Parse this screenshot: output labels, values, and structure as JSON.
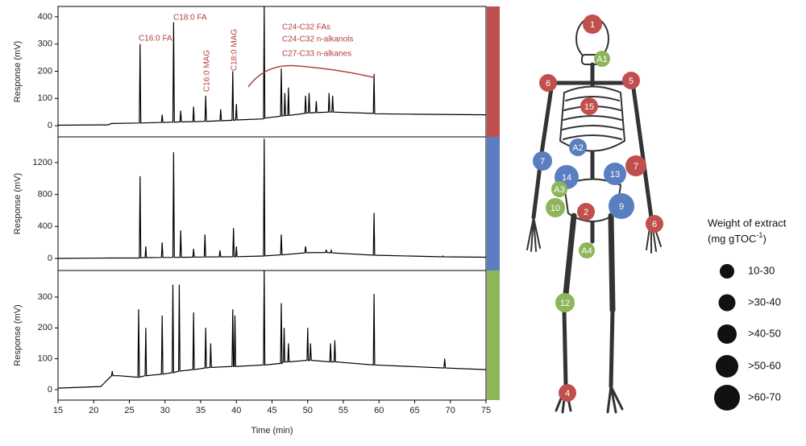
{
  "chart_data": [
    {
      "type": "line",
      "ylabel": "Response (mV)",
      "band_color": "#c0504d",
      "xlim": [
        15,
        75
      ],
      "ylim": [
        -41,
        438
      ],
      "yticks": [
        0,
        100,
        200,
        300,
        400
      ],
      "annotations": [
        "C16:0 FA",
        "C18:0 FA",
        "C16:0 MAG",
        "C18:0 MAG",
        "C24-C32 FAs",
        "C24-C32 n-alkanols",
        "C27-C33 n-alkanes"
      ],
      "x": [
        15,
        22,
        22.5,
        26.4,
        26.5,
        26.6,
        29.5,
        29.6,
        29.7,
        31.1,
        31.2,
        31.3,
        32.1,
        32.2,
        32.3,
        33.9,
        34,
        34.1,
        35.6,
        35.7,
        35.8,
        37.7,
        37.8,
        37.9,
        39.4,
        39.5,
        39.6,
        39.9,
        40,
        40.1,
        43.8,
        43.9,
        44,
        46.2,
        46.3,
        46.4,
        46.7,
        46.8,
        46.9,
        47.2,
        47.3,
        47.4,
        49.6,
        49.7,
        49.8,
        50.1,
        50.2,
        50.3,
        51.1,
        51.2,
        51.3,
        52.9,
        53,
        53.1,
        53.4,
        53.5,
        53.6,
        59.2,
        59.3,
        59.4,
        65,
        75
      ],
      "series": [
        {
          "color": "#000000",
          "values": [
            2,
            3,
            8,
            10,
            300,
            10,
            12,
            40,
            12,
            13,
            380,
            13,
            14,
            55,
            14,
            15,
            70,
            15,
            16,
            110,
            16,
            18,
            60,
            18,
            20,
            200,
            20,
            21,
            80,
            21,
            25,
            440,
            28,
            35,
            210,
            36,
            37,
            120,
            37,
            38,
            140,
            38,
            45,
            110,
            46,
            47,
            120,
            47,
            48,
            90,
            48,
            50,
            120,
            50,
            50,
            110,
            50,
            45,
            190,
            44,
            42,
            40
          ]
        }
      ]
    },
    {
      "type": "line",
      "ylabel": "Response (mV)",
      "band_color": "#5a7ebf",
      "xlim": [
        15,
        75
      ],
      "ylim": [
        -151,
        1522
      ],
      "yticks": [
        0,
        400,
        800,
        1200
      ],
      "x": [
        15,
        22,
        26.4,
        26.5,
        26.6,
        27.2,
        27.3,
        27.4,
        29.5,
        29.6,
        29.7,
        31.1,
        31.2,
        31.3,
        32.1,
        32.2,
        32.3,
        33.9,
        34,
        34.1,
        35.5,
        35.6,
        35.7,
        37.6,
        37.7,
        37.8,
        39.5,
        39.6,
        39.7,
        39.9,
        40,
        40.1,
        43.8,
        43.9,
        44,
        46.2,
        46.3,
        46.4,
        49.6,
        49.7,
        49.8,
        52.5,
        52.6,
        52.7,
        53.2,
        53.3,
        53.4,
        59.2,
        59.3,
        59.4,
        68.9,
        69,
        69.1,
        75
      ],
      "series": [
        {
          "color": "#000000",
          "values": [
            0,
            5,
            5,
            1030,
            8,
            10,
            150,
            10,
            12,
            200,
            12,
            13,
            1330,
            13,
            14,
            350,
            14,
            16,
            120,
            16,
            18,
            300,
            18,
            20,
            100,
            20,
            21,
            380,
            21,
            22,
            150,
            22,
            30,
            1500,
            32,
            45,
            300,
            45,
            70,
            150,
            72,
            75,
            110,
            75,
            70,
            100,
            70,
            40,
            570,
            40,
            20,
            30,
            20,
            15
          ]
        }
      ]
    },
    {
      "type": "line",
      "ylabel": "Response (mV)",
      "band_color": "#8db55a",
      "xlim": [
        15,
        75
      ],
      "ylim": [
        -34,
        386
      ],
      "yticks": [
        0,
        100,
        200,
        300
      ],
      "xticks": [
        15,
        20,
        25,
        30,
        35,
        40,
        45,
        50,
        55,
        60,
        65,
        70,
        75
      ],
      "xlabel": "Time (min)",
      "x": [
        15,
        21,
        22.5,
        22.6,
        22.7,
        23.3,
        23.4,
        23.5,
        26.2,
        26.3,
        26.4,
        27.2,
        27.3,
        27.4,
        29.5,
        29.6,
        29.7,
        31,
        31.1,
        31.2,
        31.9,
        32,
        32.1,
        33.9,
        34,
        34.1,
        35.6,
        35.7,
        35.8,
        36.3,
        36.4,
        36.5,
        39.4,
        39.5,
        39.6,
        39.7,
        39.8,
        39.9,
        43.8,
        43.9,
        44,
        46.2,
        46.3,
        46.4,
        46.6,
        46.7,
        46.8,
        47.2,
        47.3,
        47.4,
        49.9,
        50,
        50.1,
        50.3,
        50.4,
        50.5,
        53.1,
        53.2,
        53.3,
        53.7,
        53.8,
        53.9,
        59.2,
        59.3,
        59.4,
        69.1,
        69.2,
        69.3,
        75
      ],
      "series": [
        {
          "color": "#000000",
          "values": [
            5,
            10,
            45,
            60,
            45,
            45,
            45,
            45,
            40,
            260,
            40,
            45,
            200,
            45,
            50,
            240,
            50,
            55,
            340,
            55,
            60,
            340,
            60,
            65,
            250,
            65,
            70,
            200,
            70,
            72,
            150,
            72,
            75,
            260,
            75,
            75,
            240,
            75,
            80,
            390,
            80,
            85,
            280,
            85,
            90,
            200,
            90,
            90,
            150,
            90,
            95,
            200,
            95,
            95,
            150,
            95,
            90,
            150,
            90,
            90,
            160,
            90,
            80,
            310,
            80,
            70,
            100,
            70,
            65
          ]
        }
      ]
    }
  ],
  "diagram": {
    "markers": [
      {
        "label": "1",
        "color": "#c0504d"
      },
      {
        "label": "A1",
        "color": "#8db55a"
      },
      {
        "label": "6",
        "color": "#c0504d"
      },
      {
        "label": "5",
        "color": "#c0504d"
      },
      {
        "label": "15",
        "color": "#c0504d"
      },
      {
        "label": "A2",
        "color": "#5a7ebf"
      },
      {
        "label": "7",
        "color": "#5a7ebf"
      },
      {
        "label": "7",
        "color": "#c0504d"
      },
      {
        "label": "14",
        "color": "#5a7ebf"
      },
      {
        "label": "13",
        "color": "#5a7ebf"
      },
      {
        "label": "A3",
        "color": "#8db55a"
      },
      {
        "label": "10",
        "color": "#8db55a"
      },
      {
        "label": "2",
        "color": "#c0504d"
      },
      {
        "label": "9",
        "color": "#5a7ebf"
      },
      {
        "label": "6",
        "color": "#c0504d"
      },
      {
        "label": "A4",
        "color": "#8db55a"
      },
      {
        "label": "12",
        "color": "#8db55a"
      },
      {
        "label": "4",
        "color": "#c0504d"
      }
    ],
    "legend": {
      "title": "Weight of extract",
      "unit": "(mg gTOC",
      "unit_sup": "-1",
      "unit_close": ")",
      "items": [
        "10-30",
        ">30-40",
        ">40-50",
        ">50-60",
        ">60-70"
      ]
    }
  }
}
